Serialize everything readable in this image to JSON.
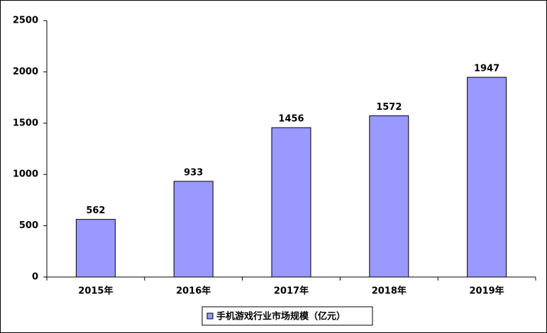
{
  "chart_data": {
    "type": "bar",
    "categories": [
      "2015年",
      "2016年",
      "2017年",
      "2018年",
      "2019年"
    ],
    "series": [
      {
        "name": "手机游戏行业市场规模（亿元）",
        "color": "#9999ff",
        "values": [
          562,
          933,
          1456,
          1572,
          1947
        ]
      }
    ],
    "ylim": [
      0,
      2500
    ],
    "yticks": [
      0,
      500,
      1000,
      1500,
      2000,
      2500
    ],
    "grid": false,
    "legend": "bottom"
  }
}
